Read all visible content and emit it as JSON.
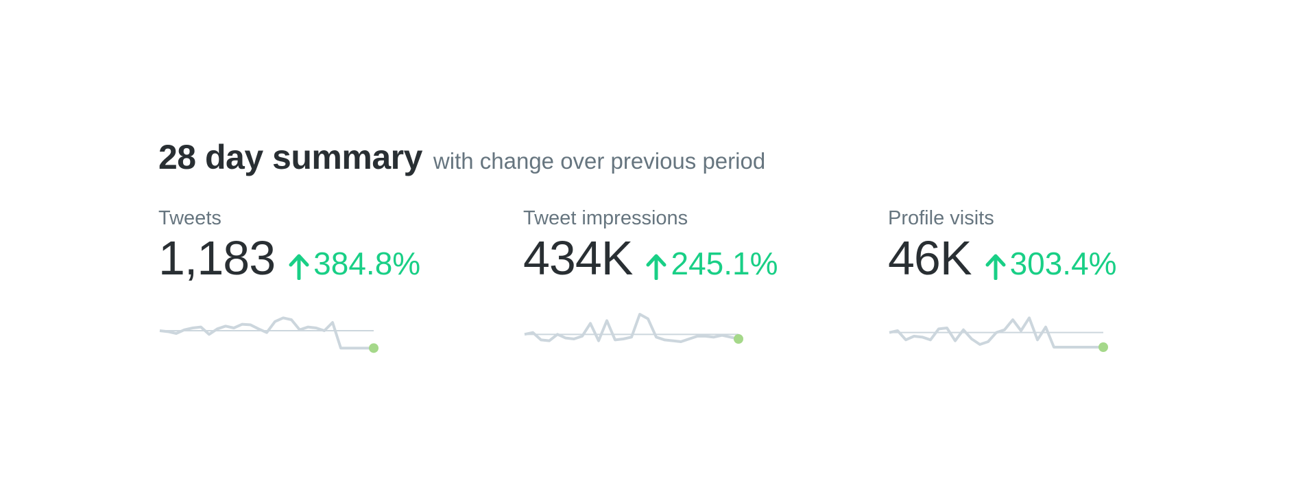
{
  "summary": {
    "title": "28 day summary",
    "subtitle": "with change over previous period"
  },
  "colors": {
    "positive": "#19cf86",
    "sparkline": "#ccd6dd",
    "baseline": "#ccd6dd",
    "endpoint": "#a5d88a"
  },
  "metrics": [
    {
      "label": "Tweets",
      "value": "1,183",
      "change": "384.8%",
      "direction": "up-arrow-icon",
      "sparkline": [
        0.4,
        0.3,
        0.1,
        0.5,
        0.7,
        0.8,
        0.0,
        0.6,
        0.9,
        0.7,
        1.1,
        1.05,
        0.6,
        0.2,
        1.4,
        1.8,
        1.6,
        0.5,
        0.8,
        0.7,
        0.4,
        1.3,
        -1.5,
        -1.5,
        -1.5,
        -1.5,
        -1.5
      ],
      "baseline": 0.4
    },
    {
      "label": "Tweet impressions",
      "value": "434K",
      "change": "245.1%",
      "direction": "up-arrow-icon",
      "sparkline": [
        0.0,
        0.2,
        -0.6,
        -0.7,
        0.0,
        -0.4,
        -0.5,
        -0.2,
        1.2,
        -0.7,
        1.5,
        -0.6,
        -0.5,
        -0.3,
        2.2,
        1.7,
        -0.3,
        -0.6,
        -0.7,
        -0.8,
        -0.5,
        -0.2,
        -0.2,
        -0.3,
        -0.1,
        -0.3,
        -0.5
      ],
      "baseline": 0.0
    },
    {
      "label": "Profile visits",
      "value": "46K",
      "change": "303.4%",
      "direction": "up-arrow-icon",
      "sparkline": [
        0.2,
        0.4,
        -0.6,
        -0.2,
        -0.3,
        -0.6,
        0.6,
        0.7,
        -0.7,
        0.5,
        -0.5,
        -1.1,
        -0.8,
        0.2,
        0.5,
        1.6,
        0.4,
        1.8,
        -0.6,
        0.8,
        -1.4,
        -1.4,
        -1.4,
        -1.4,
        -1.4,
        -1.4,
        -1.4
      ],
      "baseline": 0.2
    }
  ]
}
